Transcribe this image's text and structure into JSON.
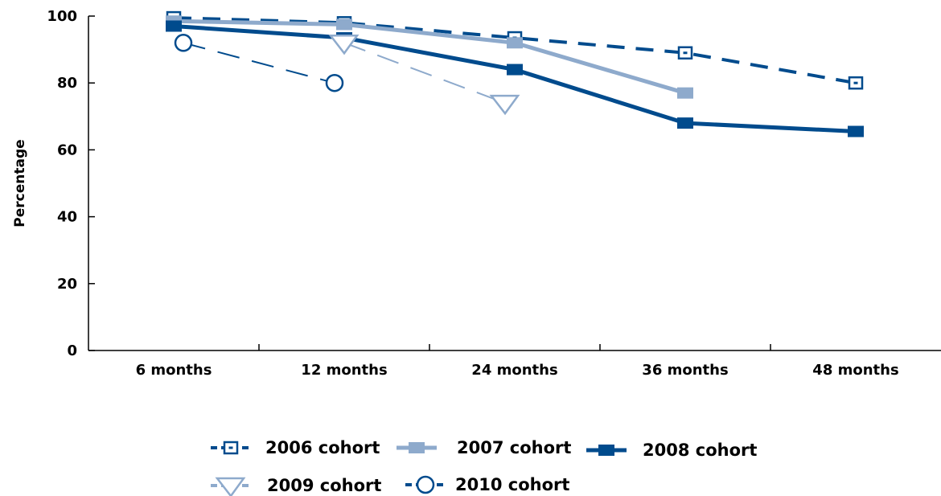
{
  "chart_data": {
    "type": "line",
    "title": "",
    "xlabel": "",
    "ylabel": "Percentage",
    "categories": [
      "6 months",
      "12 months",
      "24 months",
      "36 months",
      "48 months"
    ],
    "yticks": [
      "0",
      "20",
      "40",
      "60",
      "80",
      "100"
    ],
    "ylim": [
      0,
      100
    ],
    "grid": false,
    "legend_position": "bottom",
    "series": [
      {
        "name": "2006 cohort",
        "color": "#004B8D",
        "line": "dashed",
        "marker": "square-open-dot",
        "values": [
          99.5,
          98,
          93.5,
          89,
          80
        ]
      },
      {
        "name": "2007 cohort",
        "color": "#8EAACC",
        "line": "solid",
        "marker": "square-filled",
        "values": [
          98.5,
          97.5,
          92,
          77,
          null
        ]
      },
      {
        "name": "2008 cohort",
        "color": "#004B8D",
        "line": "solid",
        "marker": "square-filled",
        "values": [
          97,
          93.5,
          84,
          68,
          65.5
        ]
      },
      {
        "name": "2009 cohort",
        "color": "#8EAACC",
        "line": "dashed",
        "marker": "triangle-open",
        "values": [
          null,
          92,
          74,
          null,
          null
        ]
      },
      {
        "name": "2010 cohort",
        "color": "#004B8D",
        "line": "dashed",
        "marker": "circle-open",
        "values": [
          92,
          80,
          null,
          null,
          null
        ]
      }
    ]
  }
}
